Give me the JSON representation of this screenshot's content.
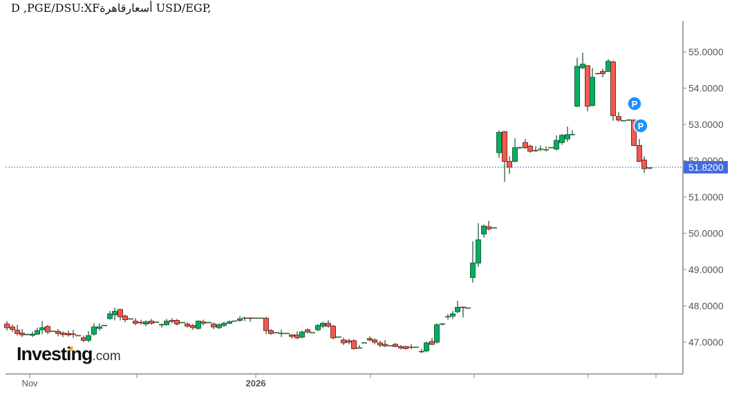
{
  "title": "USD/EGP, قاهرةالسعر XF:USD/EGP, D",
  "title_display": "D ,PGE/DSU:XFأسعارقاهرة USD/EGP,",
  "logo": {
    "main": "Investing",
    "suffix": ".com"
  },
  "colors": {
    "up": "#00b060",
    "down": "#f05a50",
    "wick": "#2a5a3c",
    "axis": "#888888",
    "last_price_bg": "#4169e1",
    "last_price_line": "#4a6ee0",
    "marker": "#1e90ff"
  },
  "current_price": {
    "label": "51.8200",
    "value": 51.82
  },
  "markers": [
    {
      "label": "P",
      "x": 918,
      "y": 150
    },
    {
      "label": "P",
      "x": 927,
      "y": 182
    }
  ],
  "chart_data": {
    "type": "candlestick",
    "title": "USD/EGP, D",
    "xlabel": "",
    "ylabel": "",
    "ylim": [
      46.2,
      55.8
    ],
    "yticks": [
      "55.0000",
      "54.0000",
      "53.0000",
      "52.0000",
      "51.0000",
      "50.0000",
      "49.0000",
      "48.0000",
      "47.0000"
    ],
    "ytick_values": [
      55,
      54,
      53,
      52,
      51,
      50,
      49,
      48,
      47
    ],
    "xticks": [
      {
        "label": "Nov",
        "x": 43,
        "bold": false
      },
      {
        "label": "",
        "x": 198,
        "bold": false
      },
      {
        "label": "2026",
        "x": 370,
        "bold": true
      },
      {
        "label": "",
        "x": 536,
        "bold": false
      },
      {
        "label": "",
        "x": 686,
        "bold": false
      },
      {
        "label": "",
        "x": 851,
        "bold": false
      },
      {
        "label": "",
        "x": 949,
        "bold": false
      }
    ],
    "grid": false,
    "candles": [
      {
        "x": 10,
        "o": 47.5,
        "h": 47.58,
        "l": 47.32,
        "c": 47.4
      },
      {
        "x": 18,
        "o": 47.42,
        "h": 47.48,
        "l": 47.28,
        "c": 47.35
      },
      {
        "x": 25,
        "o": 47.33,
        "h": 47.48,
        "l": 47.18,
        "c": 47.24
      },
      {
        "x": 32,
        "o": 47.25,
        "h": 47.36,
        "l": 47.14,
        "c": 47.2
      },
      {
        "x": 39,
        "o": 47.21,
        "h": 47.23,
        "l": 47.19,
        "c": 47.21
      },
      {
        "x": 47,
        "o": 47.19,
        "h": 47.29,
        "l": 47.14,
        "c": 47.22
      },
      {
        "x": 54,
        "o": 47.22,
        "h": 47.4,
        "l": 47.2,
        "c": 47.32
      },
      {
        "x": 61,
        "o": 47.34,
        "h": 47.58,
        "l": 47.22,
        "c": 47.4
      },
      {
        "x": 69,
        "o": 47.43,
        "h": 47.48,
        "l": 47.22,
        "c": 47.28
      },
      {
        "x": 76,
        "o": 47.3,
        "h": 47.31,
        "l": 47.29,
        "c": 47.3
      },
      {
        "x": 84,
        "o": 47.3,
        "h": 47.36,
        "l": 47.16,
        "c": 47.24
      },
      {
        "x": 91,
        "o": 47.25,
        "h": 47.3,
        "l": 47.14,
        "c": 47.21
      },
      {
        "x": 99,
        "o": 47.24,
        "h": 47.32,
        "l": 47.15,
        "c": 47.2
      },
      {
        "x": 106,
        "o": 47.22,
        "h": 47.34,
        "l": 47.12,
        "c": 47.2
      },
      {
        "x": 113,
        "o": 47.18,
        "h": 47.19,
        "l": 47.17,
        "c": 47.18
      },
      {
        "x": 121,
        "o": 47.12,
        "h": 47.18,
        "l": 47.0,
        "c": 47.05
      },
      {
        "x": 128,
        "o": 47.05,
        "h": 47.3,
        "l": 47.0,
        "c": 47.18
      },
      {
        "x": 136,
        "o": 47.22,
        "h": 47.52,
        "l": 47.18,
        "c": 47.42
      },
      {
        "x": 144,
        "o": 47.38,
        "h": 47.52,
        "l": 47.32,
        "c": 47.42
      },
      {
        "x": 151,
        "o": 47.46,
        "h": 47.47,
        "l": 47.45,
        "c": 47.46
      },
      {
        "x": 159,
        "o": 47.65,
        "h": 47.86,
        "l": 47.62,
        "c": 47.78
      },
      {
        "x": 166,
        "o": 47.75,
        "h": 47.95,
        "l": 47.6,
        "c": 47.85
      },
      {
        "x": 174,
        "o": 47.9,
        "h": 47.92,
        "l": 47.6,
        "c": 47.7
      },
      {
        "x": 181,
        "o": 47.72,
        "h": 47.76,
        "l": 47.55,
        "c": 47.62
      },
      {
        "x": 189,
        "o": 47.64,
        "h": 47.65,
        "l": 47.63,
        "c": 47.64
      },
      {
        "x": 196,
        "o": 47.58,
        "h": 47.66,
        "l": 47.47,
        "c": 47.52
      },
      {
        "x": 204,
        "o": 47.54,
        "h": 47.62,
        "l": 47.48,
        "c": 47.52
      },
      {
        "x": 211,
        "o": 47.5,
        "h": 47.6,
        "l": 47.44,
        "c": 47.56
      },
      {
        "x": 219,
        "o": 47.58,
        "h": 47.64,
        "l": 47.48,
        "c": 47.52
      },
      {
        "x": 226,
        "o": 47.55,
        "h": 47.56,
        "l": 47.54,
        "c": 47.55
      },
      {
        "x": 234,
        "o": 47.48,
        "h": 47.52,
        "l": 47.4,
        "c": 47.48
      },
      {
        "x": 241,
        "o": 47.48,
        "h": 47.64,
        "l": 47.46,
        "c": 47.58
      },
      {
        "x": 249,
        "o": 47.6,
        "h": 47.66,
        "l": 47.52,
        "c": 47.57
      },
      {
        "x": 256,
        "o": 47.6,
        "h": 47.64,
        "l": 47.46,
        "c": 47.5
      },
      {
        "x": 264,
        "o": 47.54,
        "h": 47.55,
        "l": 47.53,
        "c": 47.54
      },
      {
        "x": 271,
        "o": 47.5,
        "h": 47.54,
        "l": 47.4,
        "c": 47.44
      },
      {
        "x": 279,
        "o": 47.46,
        "h": 47.5,
        "l": 47.34,
        "c": 47.4
      },
      {
        "x": 287,
        "o": 47.38,
        "h": 47.6,
        "l": 47.34,
        "c": 47.58
      },
      {
        "x": 294,
        "o": 47.56,
        "h": 47.62,
        "l": 47.46,
        "c": 47.52
      },
      {
        "x": 302,
        "o": 47.54,
        "h": 47.55,
        "l": 47.53,
        "c": 47.54
      },
      {
        "x": 309,
        "o": 47.5,
        "h": 47.54,
        "l": 47.36,
        "c": 47.42
      },
      {
        "x": 317,
        "o": 47.4,
        "h": 47.52,
        "l": 47.36,
        "c": 47.48
      },
      {
        "x": 324,
        "o": 47.46,
        "h": 47.56,
        "l": 47.42,
        "c": 47.52
      },
      {
        "x": 332,
        "o": 47.52,
        "h": 47.6,
        "l": 47.5,
        "c": 47.56
      },
      {
        "x": 339,
        "o": 47.58,
        "h": 47.59,
        "l": 47.57,
        "c": 47.58
      },
      {
        "x": 347,
        "o": 47.6,
        "h": 47.72,
        "l": 47.56,
        "c": 47.64
      },
      {
        "x": 354,
        "o": 47.64,
        "h": 47.7,
        "l": 47.58,
        "c": 47.66
      },
      {
        "x": 362,
        "o": 47.66,
        "h": 47.68,
        "l": 47.56,
        "c": 47.64
      },
      {
        "x": 369,
        "o": 47.66,
        "h": 47.67,
        "l": 47.65,
        "c": 47.66
      },
      {
        "x": 377,
        "o": 47.66,
        "h": 47.67,
        "l": 47.65,
        "c": 47.66
      },
      {
        "x": 385,
        "o": 47.66,
        "h": 47.7,
        "l": 47.22,
        "c": 47.32
      },
      {
        "x": 392,
        "o": 47.32,
        "h": 47.36,
        "l": 47.2,
        "c": 47.24
      },
      {
        "x": 400,
        "o": 47.26,
        "h": 47.27,
        "l": 47.25,
        "c": 47.26
      },
      {
        "x": 407,
        "o": 47.22,
        "h": 47.34,
        "l": 47.14,
        "c": 47.24
      },
      {
        "x": 415,
        "o": 47.24,
        "h": 47.25,
        "l": 47.23,
        "c": 47.24
      },
      {
        "x": 422,
        "o": 47.2,
        "h": 47.22,
        "l": 47.1,
        "c": 47.16
      },
      {
        "x": 430,
        "o": 47.2,
        "h": 47.3,
        "l": 47.08,
        "c": 47.12
      },
      {
        "x": 437,
        "o": 47.14,
        "h": 47.32,
        "l": 47.1,
        "c": 47.28
      },
      {
        "x": 445,
        "o": 47.34,
        "h": 47.38,
        "l": 47.24,
        "c": 47.28
      },
      {
        "x": 452,
        "o": 47.26,
        "h": 47.27,
        "l": 47.25,
        "c": 47.26
      },
      {
        "x": 460,
        "o": 47.34,
        "h": 47.5,
        "l": 47.3,
        "c": 47.46
      },
      {
        "x": 467,
        "o": 47.44,
        "h": 47.56,
        "l": 47.38,
        "c": 47.52
      },
      {
        "x": 475,
        "o": 47.52,
        "h": 47.6,
        "l": 47.4,
        "c": 47.44
      },
      {
        "x": 482,
        "o": 47.44,
        "h": 47.48,
        "l": 47.08,
        "c": 47.12
      },
      {
        "x": 490,
        "o": 47.14,
        "h": 47.15,
        "l": 47.13,
        "c": 47.14
      },
      {
        "x": 497,
        "o": 47.06,
        "h": 47.12,
        "l": 46.92,
        "c": 46.98
      },
      {
        "x": 505,
        "o": 47.04,
        "h": 47.1,
        "l": 46.94,
        "c": 47.0
      },
      {
        "x": 512,
        "o": 47.04,
        "h": 47.08,
        "l": 46.8,
        "c": 46.82
      },
      {
        "x": 520,
        "o": 46.84,
        "h": 46.92,
        "l": 46.82,
        "c": 46.84
      },
      {
        "x": 527,
        "o": 46.98,
        "h": 46.99,
        "l": 46.97,
        "c": 46.98
      },
      {
        "x": 535,
        "o": 47.1,
        "h": 47.16,
        "l": 47.02,
        "c": 47.06
      },
      {
        "x": 542,
        "o": 47.06,
        "h": 47.1,
        "l": 46.94,
        "c": 47.0
      },
      {
        "x": 550,
        "o": 46.98,
        "h": 47.04,
        "l": 46.86,
        "c": 46.92
      },
      {
        "x": 557,
        "o": 46.94,
        "h": 47.06,
        "l": 46.86,
        "c": 46.9
      },
      {
        "x": 565,
        "o": 46.9,
        "h": 46.91,
        "l": 46.89,
        "c": 46.9
      },
      {
        "x": 572,
        "o": 46.94,
        "h": 46.98,
        "l": 46.86,
        "c": 46.88
      },
      {
        "x": 580,
        "o": 46.88,
        "h": 46.92,
        "l": 46.8,
        "c": 46.84
      },
      {
        "x": 587,
        "o": 46.88,
        "h": 46.9,
        "l": 46.8,
        "c": 46.82
      },
      {
        "x": 595,
        "o": 46.86,
        "h": 46.94,
        "l": 46.8,
        "c": 46.86
      },
      {
        "x": 602,
        "o": 46.86,
        "h": 46.87,
        "l": 46.85,
        "c": 46.86
      },
      {
        "x": 610,
        "o": 46.74,
        "h": 46.82,
        "l": 46.7,
        "c": 46.74
      },
      {
        "x": 617,
        "o": 46.76,
        "h": 47.02,
        "l": 46.72,
        "c": 46.98
      },
      {
        "x": 625,
        "o": 47.02,
        "h": 47.12,
        "l": 46.92,
        "c": 46.94
      },
      {
        "x": 632,
        "o": 47.0,
        "h": 47.52,
        "l": 46.96,
        "c": 47.48
      },
      {
        "x": 640,
        "o": 47.48,
        "h": 47.52,
        "l": 47.46,
        "c": 47.5
      },
      {
        "x": 648,
        "o": 47.7,
        "h": 47.78,
        "l": 47.62,
        "c": 47.7
      },
      {
        "x": 655,
        "o": 47.72,
        "h": 47.86,
        "l": 47.64,
        "c": 47.78
      },
      {
        "x": 662,
        "o": 47.84,
        "h": 48.14,
        "l": 47.8,
        "c": 47.96
      },
      {
        "x": 670,
        "o": 47.96,
        "h": 47.98,
        "l": 47.68,
        "c": 47.94
      },
      {
        "x": 677,
        "o": 47.94,
        "h": 47.95,
        "l": 47.93,
        "c": 47.94
      },
      {
        "x": 684,
        "o": 48.78,
        "h": 49.78,
        "l": 48.64,
        "c": 49.18
      },
      {
        "x": 692,
        "o": 49.18,
        "h": 50.28,
        "l": 49.08,
        "c": 49.82
      },
      {
        "x": 700,
        "o": 49.98,
        "h": 50.24,
        "l": 49.88,
        "c": 50.2
      },
      {
        "x": 707,
        "o": 50.18,
        "h": 50.34,
        "l": 50.08,
        "c": 50.12
      },
      {
        "x": 715,
        "o": 50.15,
        "h": 50.16,
        "l": 50.14,
        "c": 50.15
      },
      {
        "x": 722,
        "o": 52.22,
        "h": 52.84,
        "l": 52.08,
        "c": 52.78
      },
      {
        "x": 730,
        "o": 52.8,
        "h": 52.82,
        "l": 51.42,
        "c": 51.98
      },
      {
        "x": 737,
        "o": 51.98,
        "h": 52.12,
        "l": 51.64,
        "c": 51.82
      },
      {
        "x": 745,
        "o": 51.98,
        "h": 52.62,
        "l": 51.96,
        "c": 52.36
      },
      {
        "x": 752,
        "o": 52.36,
        "h": 52.38,
        "l": 52.32,
        "c": 52.36
      },
      {
        "x": 760,
        "o": 52.5,
        "h": 52.6,
        "l": 52.32,
        "c": 52.36
      },
      {
        "x": 767,
        "o": 52.4,
        "h": 52.44,
        "l": 52.22,
        "c": 52.26
      },
      {
        "x": 775,
        "o": 52.28,
        "h": 52.4,
        "l": 52.24,
        "c": 52.28
      },
      {
        "x": 782,
        "o": 52.3,
        "h": 52.42,
        "l": 52.26,
        "c": 52.32
      },
      {
        "x": 790,
        "o": 52.3,
        "h": 52.4,
        "l": 52.26,
        "c": 52.3
      },
      {
        "x": 797,
        "o": 52.36,
        "h": 52.37,
        "l": 52.35,
        "c": 52.36
      },
      {
        "x": 805,
        "o": 52.32,
        "h": 52.7,
        "l": 52.28,
        "c": 52.56
      },
      {
        "x": 813,
        "o": 52.5,
        "h": 52.74,
        "l": 52.44,
        "c": 52.7
      },
      {
        "x": 821,
        "o": 52.6,
        "h": 52.94,
        "l": 52.52,
        "c": 52.72
      },
      {
        "x": 828,
        "o": 52.72,
        "h": 52.84,
        "l": 52.7,
        "c": 52.72
      },
      {
        "x": 835,
        "o": 53.5,
        "h": 54.84,
        "l": 53.48,
        "c": 54.6
      },
      {
        "x": 843,
        "o": 54.56,
        "h": 54.98,
        "l": 54.52,
        "c": 54.66
      },
      {
        "x": 850,
        "o": 54.62,
        "h": 54.62,
        "l": 53.36,
        "c": 53.5
      },
      {
        "x": 857,
        "o": 53.52,
        "h": 54.56,
        "l": 53.5,
        "c": 54.3
      },
      {
        "x": 865,
        "o": 54.4,
        "h": 54.42,
        "l": 54.38,
        "c": 54.4
      },
      {
        "x": 872,
        "o": 54.46,
        "h": 54.54,
        "l": 54.3,
        "c": 54.4
      },
      {
        "x": 880,
        "o": 54.46,
        "h": 54.8,
        "l": 54.44,
        "c": 54.74
      },
      {
        "x": 887,
        "o": 54.72,
        "h": 54.76,
        "l": 53.1,
        "c": 53.24
      },
      {
        "x": 895,
        "o": 53.22,
        "h": 53.34,
        "l": 53.08,
        "c": 53.12
      },
      {
        "x": 902,
        "o": 53.1,
        "h": 53.11,
        "l": 53.09,
        "c": 53.1
      },
      {
        "x": 910,
        "o": 53.12,
        "h": 53.14,
        "l": 53.1,
        "c": 53.12
      },
      {
        "x": 917,
        "o": 53.12,
        "h": 53.14,
        "l": 52.4,
        "c": 52.42
      },
      {
        "x": 925,
        "o": 52.42,
        "h": 52.6,
        "l": 51.96,
        "c": 51.98
      },
      {
        "x": 932,
        "o": 52.02,
        "h": 52.12,
        "l": 51.66,
        "c": 51.78
      },
      {
        "x": 940,
        "o": 51.8,
        "h": 51.82,
        "l": 51.76,
        "c": 51.8
      }
    ]
  }
}
